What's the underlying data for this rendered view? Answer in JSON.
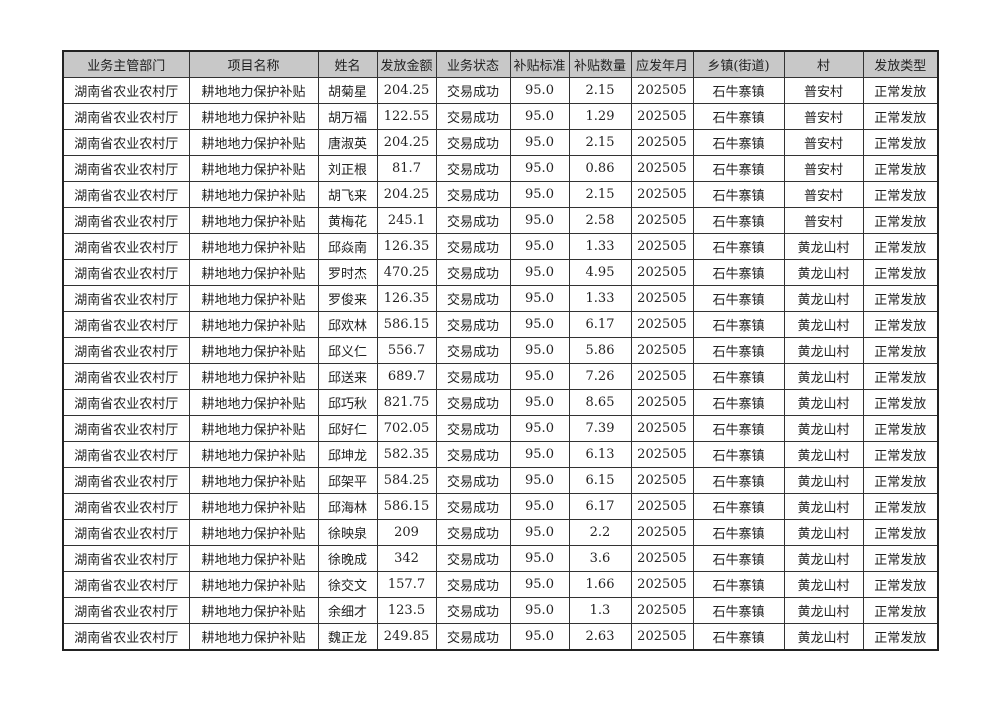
{
  "headers": [
    "业务主管部门",
    "项目名称",
    "姓名",
    "发放金额",
    "业务状态",
    "补贴标准",
    "补贴数量",
    "应发年月",
    "乡镇(街道)",
    "村",
    "发放类型"
  ],
  "rows": [
    [
      "湖南省农业农村厅",
      "耕地地力保护补贴",
      "胡菊星",
      "204.25",
      "交易成功",
      "95.0",
      "2.15",
      "202505",
      "石牛寨镇",
      "普安村",
      "正常发放"
    ],
    [
      "湖南省农业农村厅",
      "耕地地力保护补贴",
      "胡万福",
      "122.55",
      "交易成功",
      "95.0",
      "1.29",
      "202505",
      "石牛寨镇",
      "普安村",
      "正常发放"
    ],
    [
      "湖南省农业农村厅",
      "耕地地力保护补贴",
      "唐淑英",
      "204.25",
      "交易成功",
      "95.0",
      "2.15",
      "202505",
      "石牛寨镇",
      "普安村",
      "正常发放"
    ],
    [
      "湖南省农业农村厅",
      "耕地地力保护补贴",
      "刘正根",
      "81.7",
      "交易成功",
      "95.0",
      "0.86",
      "202505",
      "石牛寨镇",
      "普安村",
      "正常发放"
    ],
    [
      "湖南省农业农村厅",
      "耕地地力保护补贴",
      "胡飞来",
      "204.25",
      "交易成功",
      "95.0",
      "2.15",
      "202505",
      "石牛寨镇",
      "普安村",
      "正常发放"
    ],
    [
      "湖南省农业农村厅",
      "耕地地力保护补贴",
      "黄梅花",
      "245.1",
      "交易成功",
      "95.0",
      "2.58",
      "202505",
      "石牛寨镇",
      "普安村",
      "正常发放"
    ],
    [
      "湖南省农业农村厅",
      "耕地地力保护补贴",
      "邱焱南",
      "126.35",
      "交易成功",
      "95.0",
      "1.33",
      "202505",
      "石牛寨镇",
      "黄龙山村",
      "正常发放"
    ],
    [
      "湖南省农业农村厅",
      "耕地地力保护补贴",
      "罗时杰",
      "470.25",
      "交易成功",
      "95.0",
      "4.95",
      "202505",
      "石牛寨镇",
      "黄龙山村",
      "正常发放"
    ],
    [
      "湖南省农业农村厅",
      "耕地地力保护补贴",
      "罗俊来",
      "126.35",
      "交易成功",
      "95.0",
      "1.33",
      "202505",
      "石牛寨镇",
      "黄龙山村",
      "正常发放"
    ],
    [
      "湖南省农业农村厅",
      "耕地地力保护补贴",
      "邱欢林",
      "586.15",
      "交易成功",
      "95.0",
      "6.17",
      "202505",
      "石牛寨镇",
      "黄龙山村",
      "正常发放"
    ],
    [
      "湖南省农业农村厅",
      "耕地地力保护补贴",
      "邱义仁",
      "556.7",
      "交易成功",
      "95.0",
      "5.86",
      "202505",
      "石牛寨镇",
      "黄龙山村",
      "正常发放"
    ],
    [
      "湖南省农业农村厅",
      "耕地地力保护补贴",
      "邱送来",
      "689.7",
      "交易成功",
      "95.0",
      "7.26",
      "202505",
      "石牛寨镇",
      "黄龙山村",
      "正常发放"
    ],
    [
      "湖南省农业农村厅",
      "耕地地力保护补贴",
      "邱巧秋",
      "821.75",
      "交易成功",
      "95.0",
      "8.65",
      "202505",
      "石牛寨镇",
      "黄龙山村",
      "正常发放"
    ],
    [
      "湖南省农业农村厅",
      "耕地地力保护补贴",
      "邱好仁",
      "702.05",
      "交易成功",
      "95.0",
      "7.39",
      "202505",
      "石牛寨镇",
      "黄龙山村",
      "正常发放"
    ],
    [
      "湖南省农业农村厅",
      "耕地地力保护补贴",
      "邱坤龙",
      "582.35",
      "交易成功",
      "95.0",
      "6.13",
      "202505",
      "石牛寨镇",
      "黄龙山村",
      "正常发放"
    ],
    [
      "湖南省农业农村厅",
      "耕地地力保护补贴",
      "邱架平",
      "584.25",
      "交易成功",
      "95.0",
      "6.15",
      "202505",
      "石牛寨镇",
      "黄龙山村",
      "正常发放"
    ],
    [
      "湖南省农业农村厅",
      "耕地地力保护补贴",
      "邱海林",
      "586.15",
      "交易成功",
      "95.0",
      "6.17",
      "202505",
      "石牛寨镇",
      "黄龙山村",
      "正常发放"
    ],
    [
      "湖南省农业农村厅",
      "耕地地力保护补贴",
      "徐映泉",
      "209",
      "交易成功",
      "95.0",
      "2.2",
      "202505",
      "石牛寨镇",
      "黄龙山村",
      "正常发放"
    ],
    [
      "湖南省农业农村厅",
      "耕地地力保护补贴",
      "徐晚成",
      "342",
      "交易成功",
      "95.0",
      "3.6",
      "202505",
      "石牛寨镇",
      "黄龙山村",
      "正常发放"
    ],
    [
      "湖南省农业农村厅",
      "耕地地力保护补贴",
      "徐交文",
      "157.7",
      "交易成功",
      "95.0",
      "1.66",
      "202505",
      "石牛寨镇",
      "黄龙山村",
      "正常发放"
    ],
    [
      "湖南省农业农村厅",
      "耕地地力保护补贴",
      "余细才",
      "123.5",
      "交易成功",
      "95.0",
      "1.3",
      "202505",
      "石牛寨镇",
      "黄龙山村",
      "正常发放"
    ],
    [
      "湖南省农业农村厅",
      "耕地地力保护补贴",
      "魏正龙",
      "249.85",
      "交易成功",
      "95.0",
      "2.63",
      "202505",
      "石牛寨镇",
      "黄龙山村",
      "正常发放"
    ]
  ]
}
